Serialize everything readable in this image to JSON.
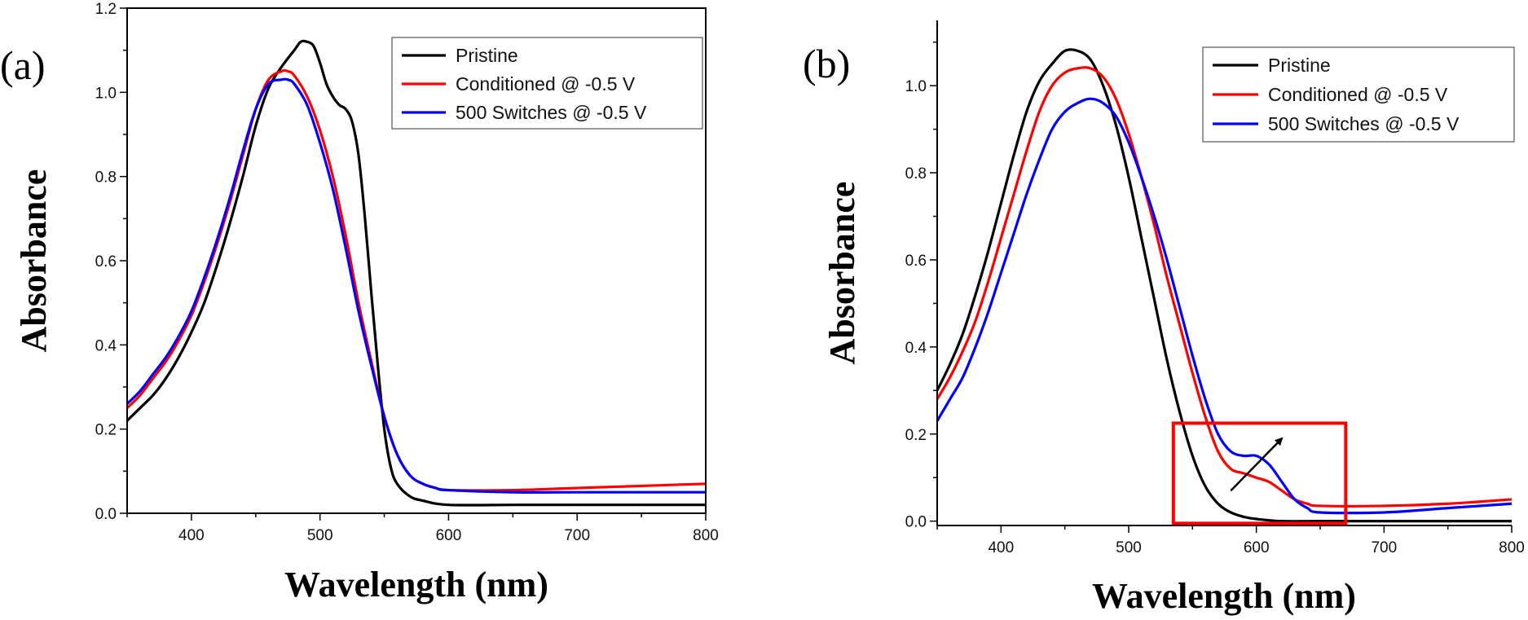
{
  "chart_data": [
    {
      "panel_label": "(a)",
      "type": "line",
      "xlabel": "Wavelength (nm)",
      "ylabel": "Absorbance",
      "xlim": [
        350,
        800
      ],
      "ylim": [
        0,
        1.2
      ],
      "xticks": [
        400,
        500,
        600,
        700,
        800
      ],
      "yticks": [
        0.0,
        0.2,
        0.4,
        0.6,
        0.8,
        1.0,
        1.2
      ],
      "legend_position": "top-right",
      "series": [
        {
          "name": "Pristine",
          "color": "#000000",
          "x": [
            350,
            360,
            370,
            380,
            390,
            400,
            410,
            420,
            430,
            440,
            450,
            460,
            470,
            480,
            485,
            490,
            495,
            500,
            505,
            510,
            515,
            520,
            525,
            530,
            535,
            540,
            545,
            550,
            555,
            560,
            570,
            580,
            600,
            650,
            700,
            750,
            800
          ],
          "y": [
            0.22,
            0.25,
            0.28,
            0.32,
            0.37,
            0.43,
            0.5,
            0.59,
            0.69,
            0.8,
            0.92,
            1.01,
            1.06,
            1.1,
            1.12,
            1.12,
            1.11,
            1.07,
            1.02,
            0.99,
            0.97,
            0.96,
            0.93,
            0.85,
            0.7,
            0.52,
            0.35,
            0.2,
            0.11,
            0.07,
            0.04,
            0.03,
            0.02,
            0.02,
            0.02,
            0.02,
            0.02
          ]
        },
        {
          "name": "Conditioned @ -0.5 V",
          "color": "#ff0000",
          "x": [
            350,
            360,
            370,
            380,
            390,
            400,
            410,
            420,
            430,
            440,
            450,
            460,
            470,
            475,
            480,
            490,
            500,
            510,
            520,
            530,
            540,
            550,
            560,
            570,
            580,
            590,
            600,
            650,
            700,
            750,
            800
          ],
          "y": [
            0.25,
            0.28,
            0.32,
            0.36,
            0.41,
            0.47,
            0.55,
            0.64,
            0.74,
            0.85,
            0.96,
            1.03,
            1.05,
            1.05,
            1.04,
            0.99,
            0.91,
            0.8,
            0.66,
            0.5,
            0.36,
            0.23,
            0.14,
            0.09,
            0.07,
            0.06,
            0.055,
            0.055,
            0.06,
            0.065,
            0.07
          ]
        },
        {
          "name": "500 Switches @ -0.5 V",
          "color": "#0000ff",
          "x": [
            350,
            360,
            370,
            380,
            390,
            400,
            410,
            420,
            430,
            440,
            450,
            460,
            470,
            475,
            480,
            490,
            500,
            510,
            520,
            530,
            540,
            550,
            560,
            570,
            580,
            590,
            600,
            650,
            700,
            750,
            800
          ],
          "y": [
            0.26,
            0.29,
            0.33,
            0.37,
            0.42,
            0.48,
            0.56,
            0.65,
            0.75,
            0.86,
            0.96,
            1.02,
            1.03,
            1.03,
            1.02,
            0.97,
            0.88,
            0.77,
            0.63,
            0.48,
            0.35,
            0.23,
            0.14,
            0.09,
            0.07,
            0.06,
            0.055,
            0.05,
            0.05,
            0.05,
            0.05
          ]
        }
      ]
    },
    {
      "panel_label": "(b)",
      "type": "line",
      "xlabel": "Wavelength (nm)",
      "ylabel": "Absorbance",
      "xlim": [
        350,
        800
      ],
      "ylim": [
        -0.01,
        1.15
      ],
      "xticks": [
        400,
        500,
        600,
        700,
        800
      ],
      "yticks": [
        0.0,
        0.2,
        0.4,
        0.6,
        0.8,
        1.0
      ],
      "legend_position": "top-right",
      "series": [
        {
          "name": "Pristine",
          "color": "#000000",
          "x": [
            350,
            360,
            370,
            380,
            390,
            400,
            410,
            420,
            430,
            440,
            450,
            460,
            470,
            480,
            490,
            500,
            510,
            520,
            530,
            540,
            550,
            560,
            570,
            580,
            590,
            600,
            620,
            650,
            700,
            750,
            800
          ],
          "y": [
            0.3,
            0.36,
            0.43,
            0.52,
            0.62,
            0.73,
            0.84,
            0.94,
            1.01,
            1.05,
            1.08,
            1.08,
            1.06,
            1.0,
            0.91,
            0.79,
            0.65,
            0.51,
            0.37,
            0.25,
            0.15,
            0.08,
            0.04,
            0.02,
            0.01,
            0.005,
            0.0,
            0.0,
            0.0,
            0.0,
            0.0
          ]
        },
        {
          "name": "Conditioned @ -0.5 V",
          "color": "#ff0000",
          "x": [
            350,
            360,
            370,
            380,
            390,
            400,
            410,
            420,
            430,
            440,
            450,
            460,
            470,
            480,
            490,
            500,
            510,
            520,
            530,
            540,
            550,
            560,
            570,
            580,
            590,
            600,
            610,
            620,
            630,
            640,
            650,
            700,
            750,
            800
          ],
          "y": [
            0.28,
            0.33,
            0.39,
            0.46,
            0.55,
            0.65,
            0.75,
            0.85,
            0.94,
            1.0,
            1.03,
            1.04,
            1.04,
            1.02,
            0.97,
            0.89,
            0.79,
            0.68,
            0.56,
            0.45,
            0.34,
            0.24,
            0.16,
            0.12,
            0.11,
            0.1,
            0.09,
            0.07,
            0.05,
            0.04,
            0.035,
            0.035,
            0.04,
            0.05
          ]
        },
        {
          "name": "500 Switches @ -0.5 V",
          "color": "#0000ff",
          "x": [
            350,
            360,
            370,
            380,
            390,
            400,
            410,
            420,
            430,
            440,
            450,
            460,
            470,
            480,
            490,
            500,
            510,
            520,
            530,
            540,
            550,
            560,
            570,
            580,
            590,
            600,
            610,
            620,
            630,
            640,
            650,
            700,
            750,
            800
          ],
          "y": [
            0.23,
            0.28,
            0.33,
            0.4,
            0.48,
            0.57,
            0.66,
            0.75,
            0.83,
            0.9,
            0.94,
            0.96,
            0.97,
            0.96,
            0.93,
            0.87,
            0.79,
            0.7,
            0.6,
            0.49,
            0.38,
            0.28,
            0.2,
            0.16,
            0.15,
            0.15,
            0.13,
            0.09,
            0.05,
            0.03,
            0.02,
            0.02,
            0.03,
            0.04
          ]
        }
      ],
      "annotations": [
        {
          "kind": "highlight-box",
          "color": "#ff0000",
          "x_range": [
            535,
            670
          ],
          "y_range": [
            -0.005,
            0.225
          ]
        },
        {
          "kind": "arrow",
          "color": "#000000",
          "from": [
            580,
            0.07
          ],
          "to": [
            620,
            0.19
          ]
        }
      ]
    }
  ]
}
